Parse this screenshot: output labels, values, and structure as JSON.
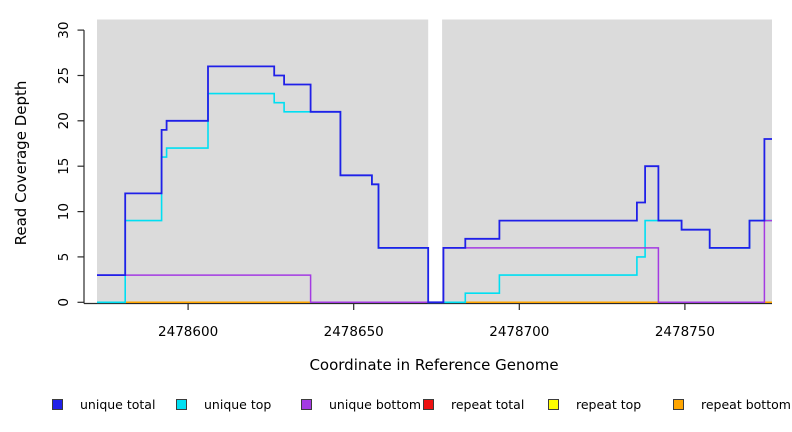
{
  "chart_data": {
    "type": "line",
    "variant": "step",
    "title": "",
    "xlabel": "Coordinate in Reference Genome",
    "ylabel": "Read Coverage Depth",
    "xlim": [
      2478572.5,
      2478776.3
    ],
    "ylim": [
      0,
      30
    ],
    "x_ticks": [
      2478600,
      2478650,
      2478700,
      2478750
    ],
    "y_ticks": [
      0,
      5,
      10,
      15,
      20,
      25,
      30
    ],
    "grid": false,
    "panel_background": "#DBDBDB",
    "axis_color": "#2b2b2b",
    "gap_band": {
      "from": 2478672.5,
      "to": 2478676.7,
      "color": "#FFFFFF"
    },
    "legend_position": "bottom",
    "legend_order": [
      "unique total",
      "unique top",
      "unique bottom",
      "repeat total",
      "repeat top",
      "repeat bottom"
    ],
    "draw_order": [
      "repeat total",
      "repeat top",
      "repeat bottom",
      "unique top",
      "unique bottom",
      "unique total"
    ],
    "series": [
      {
        "name": "unique total",
        "color": "#2020E8",
        "points": [
          [
            2478572.5,
            3
          ],
          [
            2478581,
            12
          ],
          [
            2478592,
            19
          ],
          [
            2478593.5,
            20
          ],
          [
            2478606,
            26
          ],
          [
            2478626,
            25
          ],
          [
            2478629,
            24
          ],
          [
            2478637,
            21
          ],
          [
            2478646,
            14
          ],
          [
            2478655.5,
            13
          ],
          [
            2478657.5,
            6
          ],
          [
            2478672.5,
            0
          ],
          [
            2478677.1,
            6
          ],
          [
            2478683.7,
            7
          ],
          [
            2478694,
            9
          ],
          [
            2478735.5,
            11
          ],
          [
            2478738,
            15
          ],
          [
            2478742,
            9
          ],
          [
            2478749,
            8
          ],
          [
            2478757.5,
            6
          ],
          [
            2478769.5,
            9
          ],
          [
            2478774,
            18
          ],
          [
            2478776.3,
            18
          ]
        ]
      },
      {
        "name": "unique top",
        "color": "#00DFF2",
        "points": [
          [
            2478572.5,
            0
          ],
          [
            2478581,
            9
          ],
          [
            2478592,
            16
          ],
          [
            2478593.5,
            17
          ],
          [
            2478606,
            23
          ],
          [
            2478626,
            22
          ],
          [
            2478629,
            21
          ],
          [
            2478646,
            14
          ],
          [
            2478655.5,
            13
          ],
          [
            2478657.5,
            6
          ],
          [
            2478672.5,
            0
          ],
          [
            2478683.7,
            1
          ],
          [
            2478694,
            3
          ],
          [
            2478735.5,
            5
          ],
          [
            2478738,
            9
          ],
          [
            2478749,
            8
          ],
          [
            2478757.5,
            6
          ],
          [
            2478769.5,
            9
          ],
          [
            2478776.3,
            9
          ]
        ]
      },
      {
        "name": "unique bottom",
        "color": "#A43BE2",
        "points": [
          [
            2478572.5,
            3
          ],
          [
            2478637,
            0
          ],
          [
            2478677.1,
            6
          ],
          [
            2478742,
            0
          ],
          [
            2478774,
            9
          ],
          [
            2478776.3,
            9
          ]
        ]
      },
      {
        "name": "repeat total",
        "color": "#EE1111",
        "points": [
          [
            2478572.5,
            0
          ],
          [
            2478776.3,
            0
          ]
        ]
      },
      {
        "name": "repeat top",
        "color": "#FFFF00",
        "points": [
          [
            2478572.5,
            0
          ],
          [
            2478776.3,
            0
          ]
        ]
      },
      {
        "name": "repeat bottom",
        "color": "#FFA500",
        "points": [
          [
            2478572.5,
            0
          ],
          [
            2478776.3,
            0
          ]
        ]
      }
    ]
  }
}
